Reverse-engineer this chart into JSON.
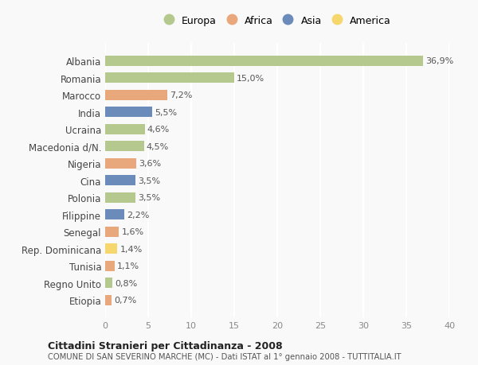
{
  "categories": [
    "Etiopia",
    "Regno Unito",
    "Tunisia",
    "Rep. Dominicana",
    "Senegal",
    "Filippine",
    "Polonia",
    "Cina",
    "Nigeria",
    "Macedonia d/N.",
    "Ucraina",
    "India",
    "Marocco",
    "Romania",
    "Albania"
  ],
  "values": [
    0.7,
    0.8,
    1.1,
    1.4,
    1.6,
    2.2,
    3.5,
    3.5,
    3.6,
    4.5,
    4.6,
    5.5,
    7.2,
    15.0,
    36.9
  ],
  "labels": [
    "0,7%",
    "0,8%",
    "1,1%",
    "1,4%",
    "1,6%",
    "2,2%",
    "3,5%",
    "3,5%",
    "3,6%",
    "4,5%",
    "4,6%",
    "5,5%",
    "7,2%",
    "15,0%",
    "36,9%"
  ],
  "colors": [
    "#e8a87c",
    "#b5c98e",
    "#e8a87c",
    "#f5d76e",
    "#e8a87c",
    "#6b8cba",
    "#b5c98e",
    "#6b8cba",
    "#e8a87c",
    "#b5c98e",
    "#b5c98e",
    "#6b8cba",
    "#e8a87c",
    "#b5c98e",
    "#b5c98e"
  ],
  "legend_labels": [
    "Europa",
    "Africa",
    "Asia",
    "America"
  ],
  "legend_colors": [
    "#b5c98e",
    "#e8a87c",
    "#6b8cba",
    "#f5d76e"
  ],
  "title": "Cittadini Stranieri per Cittadinanza - 2008",
  "subtitle": "COMUNE DI SAN SEVERINO MARCHE (MC) - Dati ISTAT al 1° gennaio 2008 - TUTTITALIA.IT",
  "xlim": [
    0,
    40
  ],
  "xticks": [
    0,
    5,
    10,
    15,
    20,
    25,
    30,
    35,
    40
  ],
  "background_color": "#f9f9f9",
  "grid_color": "#ffffff",
  "bar_height": 0.6
}
